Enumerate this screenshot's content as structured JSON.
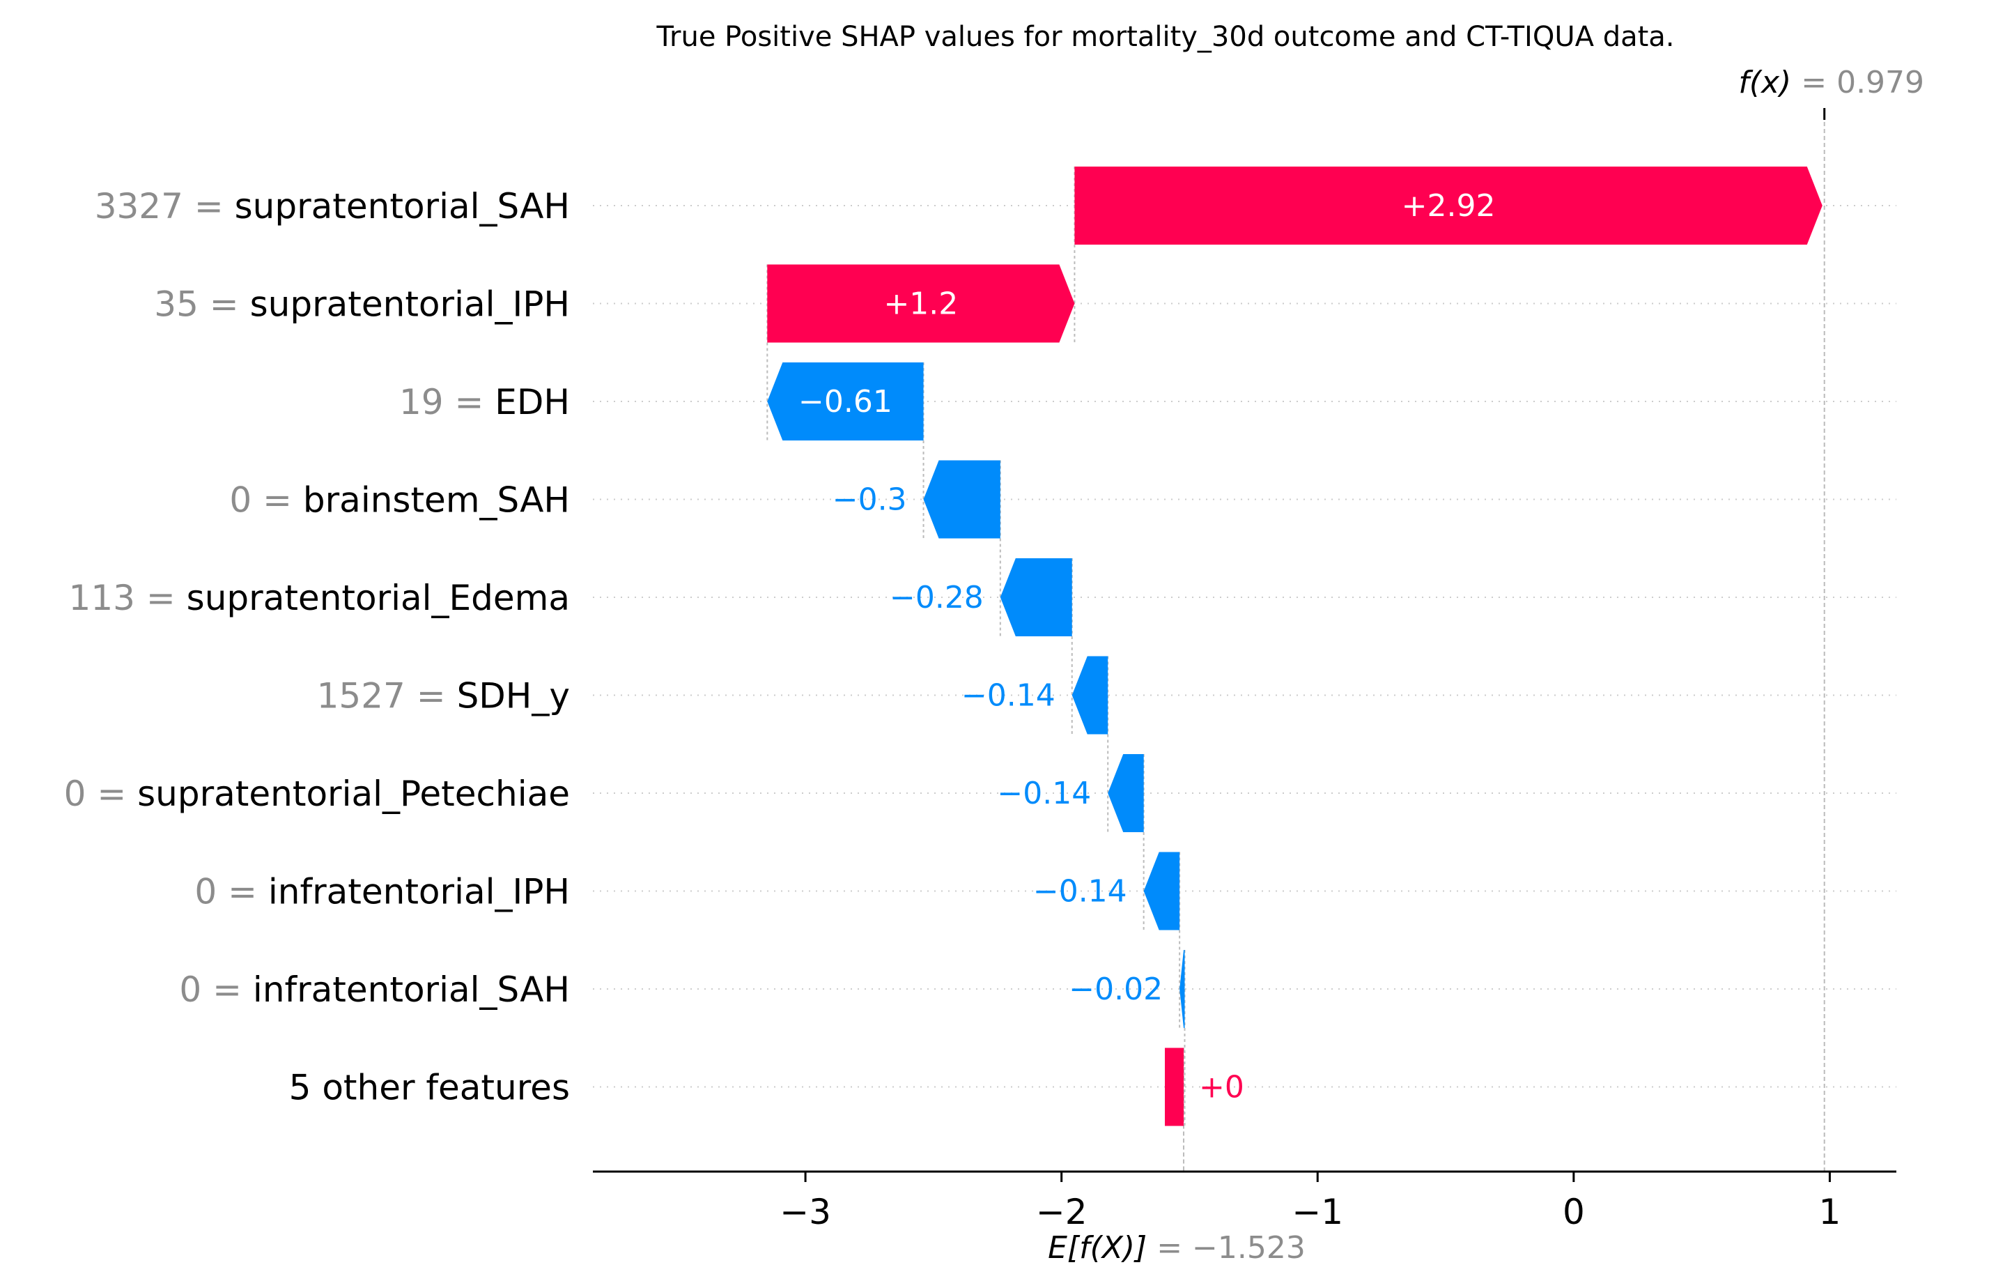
{
  "chart_data": {
    "type": "waterfall",
    "title": "True Positive SHAP values for mortality_30d outcome and CT-TIQUA data.",
    "base_value": -1.523,
    "base_value_label": "= −1.523",
    "base_label_prefix": "E[f(X)]",
    "output_value": 0.979,
    "output_value_label": "= 0.979",
    "output_label_prefix": "f(x)",
    "xlim": [
      -3.83,
      1.26
    ],
    "xticks": [
      -3,
      -2,
      -1,
      0,
      1
    ],
    "xtick_labels": [
      "−3",
      "−2",
      "−1",
      "0",
      "1"
    ],
    "features": [
      {
        "value": "3327",
        "name": "supratentorial_SAH",
        "shap": 2.92,
        "label": "+2.92"
      },
      {
        "value": "35",
        "name": "supratentorial_IPH",
        "shap": 1.2,
        "label": "+1.2"
      },
      {
        "value": "19",
        "name": "EDH",
        "shap": -0.61,
        "label": "−0.61"
      },
      {
        "value": "0",
        "name": "brainstem_SAH",
        "shap": -0.3,
        "label": "−0.3"
      },
      {
        "value": "113",
        "name": "supratentorial_Edema",
        "shap": -0.28,
        "label": "−0.28"
      },
      {
        "value": "1527",
        "name": "SDH_y",
        "shap": -0.14,
        "label": "−0.14"
      },
      {
        "value": "0",
        "name": "supratentorial_Petechiae",
        "shap": -0.14,
        "label": "−0.14"
      },
      {
        "value": "0",
        "name": "infratentorial_IPH",
        "shap": -0.14,
        "label": "−0.14"
      },
      {
        "value": "0",
        "name": "infratentorial_SAH",
        "shap": -0.02,
        "label": "−0.02"
      },
      {
        "value": "",
        "name": "5 other features",
        "shap": 0.004,
        "label": "+0"
      }
    ],
    "colors": {
      "positive": "#ff0051",
      "negative": "#008bfb",
      "value_text": "#8c8c8c",
      "text": "#000000",
      "grid": "#cccccc"
    }
  }
}
